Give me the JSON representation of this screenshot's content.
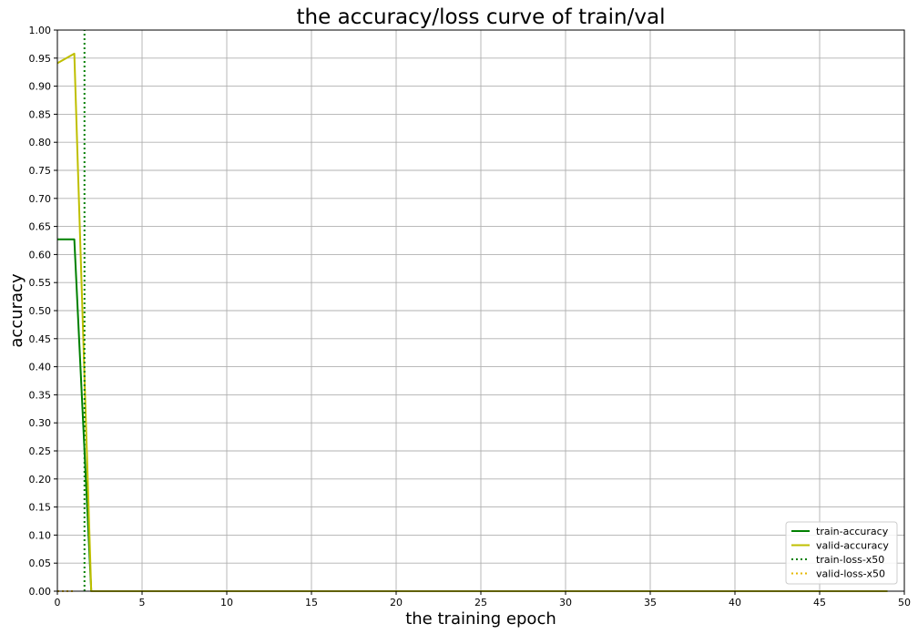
{
  "chart_data": {
    "type": "line",
    "title": "the accuracy/loss curve of train/val",
    "xlabel": "the training epoch",
    "ylabel": "accuracy",
    "xlim": [
      0,
      50
    ],
    "ylim": [
      0,
      1.0
    ],
    "x_ticks": [
      0,
      5,
      10,
      15,
      20,
      25,
      30,
      35,
      40,
      45,
      50
    ],
    "y_ticks": [
      0.0,
      0.05,
      0.1,
      0.15,
      0.2,
      0.25,
      0.3,
      0.35,
      0.4,
      0.45,
      0.5,
      0.55,
      0.6,
      0.65,
      0.7,
      0.75,
      0.8,
      0.85,
      0.9,
      0.95,
      1.0
    ],
    "grid": true,
    "legend_position": "bottom-right",
    "series": [
      {
        "name": "train-accuracy",
        "color": "#008000",
        "style": "solid",
        "x": [
          0,
          1,
          2,
          3,
          49
        ],
        "y": [
          0.627,
          0.627,
          0.0,
          0.0,
          0.0
        ]
      },
      {
        "name": "valid-accuracy",
        "color": "#bfbf00",
        "style": "solid",
        "x": [
          0,
          1,
          2,
          3,
          49
        ],
        "y": [
          0.941,
          0.958,
          0.0,
          0.0,
          0.0
        ]
      },
      {
        "name": "train-loss-x50",
        "color": "#008000",
        "style": "dotted",
        "x": [
          1.6,
          1.6
        ],
        "y": [
          0.0,
          1.0
        ]
      },
      {
        "name": "valid-loss-x50",
        "color": "#e6b800",
        "style": "dotted",
        "x": [
          0,
          1
        ],
        "y": [
          0.0,
          0.0
        ]
      }
    ]
  }
}
